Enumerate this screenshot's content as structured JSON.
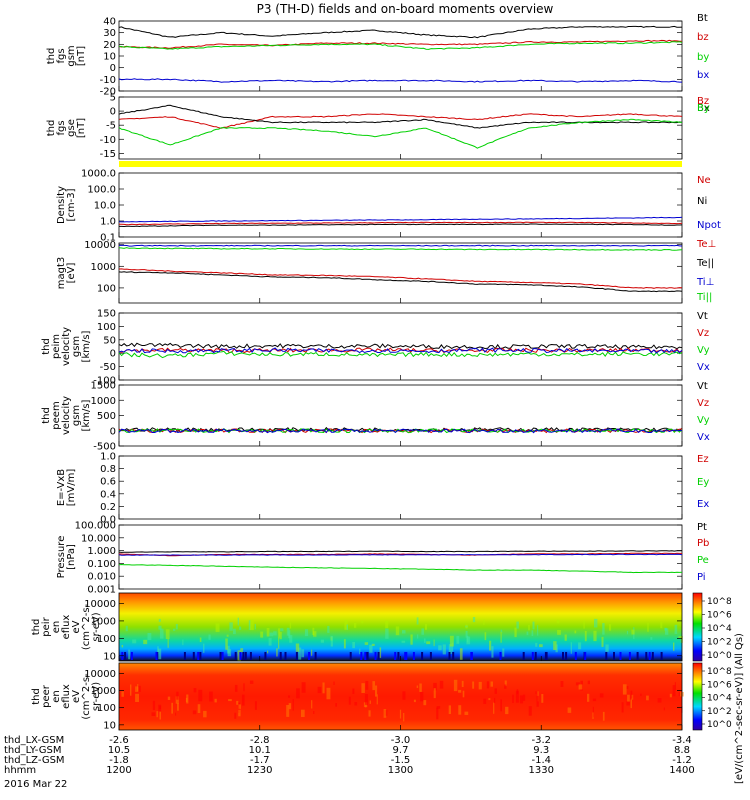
{
  "title": "P3 (TH-D) fields and on-board moments overview",
  "date_label": "2016 Mar 22",
  "x_axis": {
    "row_labels": [
      "thd_LX-GSM",
      "thd_LY-GSM",
      "thd_LZ-GSM",
      "hhmm"
    ],
    "ticks": [
      {
        "values": [
          "-2.6",
          "10.5",
          "-1.8",
          "1200"
        ]
      },
      {
        "values": [
          "-2.8",
          "10.1",
          "-1.7",
          "1230"
        ]
      },
      {
        "values": [
          "-3.0",
          "9.7",
          "-1.5",
          "1300"
        ]
      },
      {
        "values": [
          "-3.2",
          "9.3",
          "-1.4",
          "1330"
        ]
      },
      {
        "values": [
          "-3.4",
          "8.8",
          "-1.2",
          "1400"
        ]
      }
    ]
  },
  "colorbar": {
    "label": "[eV/(cm^2-sec-sr-eV)] (All Qs)",
    "upper": [
      "10^8",
      "10^6",
      "10^4",
      "10^2",
      "10^0"
    ],
    "lower": [
      "10^8",
      "10^6",
      "10^4",
      "10^2",
      "10^0"
    ]
  },
  "chart_data": [
    {
      "type": "line",
      "ylabel": [
        "thd",
        "fgs",
        "gsm",
        "[nT]"
      ],
      "ylim": [
        -20,
        40
      ],
      "ticks": [
        "40",
        "30",
        "20",
        "10",
        "0",
        "-10",
        "-20"
      ],
      "series": [
        {
          "name": "Bt",
          "color": "#000000",
          "y": [
            35,
            26,
            30,
            27,
            30,
            32,
            28,
            26,
            33,
            35,
            35,
            35
          ]
        },
        {
          "name": "bz",
          "color": "#d00000",
          "y": [
            18,
            17,
            20,
            19,
            21,
            21,
            20,
            20,
            22,
            22,
            23,
            23
          ]
        },
        {
          "name": "by",
          "color": "#00d000",
          "y": [
            18,
            16,
            18,
            19,
            20,
            20,
            16,
            17,
            20,
            21,
            21,
            22
          ]
        },
        {
          "name": "bx",
          "color": "#0000d0",
          "y": [
            -10,
            -10,
            -12,
            -11,
            -12,
            -11,
            -11,
            -12,
            -11,
            -12,
            -11,
            -12
          ]
        }
      ]
    },
    {
      "type": "line",
      "ylabel": [
        "thd",
        "fgs",
        "gse",
        "[nT]"
      ],
      "ylim": [
        -17,
        5
      ],
      "ticks": [
        "5",
        "0",
        "-5",
        "-10",
        "-15"
      ],
      "series": [
        {
          "name": "Bz",
          "color": "#d00000",
          "y": [
            -3,
            -2,
            -6,
            -2,
            -2,
            -1,
            -2,
            -3,
            -1,
            -2,
            -1,
            -2
          ]
        },
        {
          "name": "Bx",
          "color": "#000000",
          "y": [
            -1,
            2,
            -2,
            -4,
            -4,
            -4,
            -3,
            -6,
            -4,
            -4,
            -4,
            -4
          ]
        },
        {
          "name": "By",
          "color": "#00d000",
          "y": [
            -6,
            -12,
            -6,
            -6,
            -7,
            -9,
            -6,
            -13,
            -6,
            -4,
            -3,
            -4
          ]
        }
      ]
    },
    {
      "type": "line",
      "ylabel": [
        "Density",
        "[cm-3]"
      ],
      "ylim": [
        0.1,
        1000
      ],
      "log": true,
      "ticks": [
        "1000.0",
        "100.0",
        "10.0",
        "1.0",
        "0.1"
      ],
      "series": [
        {
          "name": "Ne",
          "color": "#d00000",
          "y": [
            0.6,
            0.65,
            0.7,
            0.72,
            0.75,
            0.78,
            0.8,
            0.8,
            0.82,
            0.8,
            0.75,
            0.7
          ]
        },
        {
          "name": "Ni",
          "color": "#000000",
          "y": [
            0.45,
            0.5,
            0.55,
            0.55,
            0.58,
            0.6,
            0.62,
            0.62,
            0.64,
            0.62,
            0.6,
            0.55
          ]
        },
        {
          "name": "Npot",
          "color": "#0000d0",
          "y": [
            0.9,
            0.95,
            1.0,
            1.05,
            1.1,
            1.15,
            1.2,
            1.3,
            1.35,
            1.45,
            1.55,
            1.7
          ]
        }
      ]
    },
    {
      "type": "line",
      "ylabel": [
        "magt3",
        "[eV]"
      ],
      "ylim": [
        20,
        12000
      ],
      "log": true,
      "ticks": [
        "10000",
        "1000",
        "100"
      ],
      "series": [
        {
          "name": "Te⊥",
          "color": "#d00000",
          "y": [
            750,
            600,
            500,
            400,
            380,
            330,
            260,
            200,
            180,
            150,
            100,
            100
          ]
        },
        {
          "name": "Te||",
          "color": "#000000",
          "y": [
            550,
            500,
            400,
            320,
            300,
            240,
            200,
            150,
            140,
            110,
            70,
            70
          ]
        },
        {
          "name": "Ti⊥",
          "color": "#0000d0",
          "y": [
            9000,
            9000,
            9000,
            9000,
            9000,
            9000,
            9000,
            9000,
            9000,
            9000,
            9000,
            9000
          ]
        },
        {
          "name": "Ti||",
          "color": "#00d000",
          "y": [
            7000,
            6800,
            6500,
            6500,
            6300,
            6200,
            6200,
            6000,
            6000,
            5900,
            5800,
            5800
          ]
        }
      ]
    },
    {
      "type": "line",
      "ylabel": [
        "thd",
        "peim",
        "velocity",
        "gsm",
        "[km/s]"
      ],
      "ylim": [
        -100,
        150
      ],
      "ticks": [
        "150",
        "100",
        "50",
        "0",
        "-50",
        "-100"
      ],
      "series": [
        {
          "name": "Vt",
          "color": "#000000",
          "y": [
            30,
            30,
            25,
            28,
            26,
            27,
            25,
            24,
            25,
            26,
            22,
            24
          ]
        },
        {
          "name": "Vz",
          "color": "#d00000",
          "y": [
            10,
            12,
            10,
            10,
            11,
            12,
            10,
            10,
            11,
            10,
            12,
            11
          ]
        },
        {
          "name": "Vy",
          "color": "#00d000",
          "y": [
            -5,
            -10,
            0,
            -5,
            -3,
            -8,
            -4,
            -6,
            -3,
            -5,
            -2,
            -4
          ]
        },
        {
          "name": "Vx",
          "color": "#0000d0",
          "y": [
            10,
            8,
            10,
            12,
            9,
            10,
            8,
            12,
            10,
            9,
            8,
            6
          ]
        }
      ]
    },
    {
      "type": "line",
      "ylabel": [
        "thd",
        "peem",
        "velocity",
        "gsm",
        "[km/s]"
      ],
      "ylim": [
        -500,
        1500
      ],
      "ticks": [
        "1500",
        "1000",
        "500",
        "0",
        "-500"
      ],
      "series": [
        {
          "name": "Vt",
          "color": "#000000",
          "y": [
            40,
            40,
            38,
            40,
            42,
            40,
            38,
            40,
            42,
            40,
            40,
            38
          ]
        },
        {
          "name": "Vz",
          "color": "#d00000",
          "y": [
            0,
            0,
            0,
            0,
            0,
            0,
            0,
            0,
            0,
            0,
            0,
            0
          ]
        },
        {
          "name": "Vy",
          "color": "#00d000",
          "y": [
            0,
            0,
            0,
            0,
            0,
            0,
            0,
            0,
            0,
            0,
            0,
            0
          ]
        },
        {
          "name": "Vx",
          "color": "#0000d0",
          "y": [
            0,
            0,
            0,
            0,
            0,
            0,
            0,
            0,
            0,
            0,
            0,
            0
          ]
        }
      ]
    },
    {
      "type": "line",
      "ylabel": [
        "E=-VxB",
        "[mV/m]"
      ],
      "ylim": [
        0,
        1
      ],
      "ticks": [
        "1.0",
        "0.8",
        "0.6",
        "0.4",
        "0.2",
        "0.0"
      ],
      "series": [
        {
          "name": "Ez",
          "color": "#d00000",
          "y": []
        },
        {
          "name": "Ey",
          "color": "#00d000",
          "y": []
        },
        {
          "name": "Ex",
          "color": "#0000d0",
          "y": []
        }
      ]
    },
    {
      "type": "line",
      "ylabel": [
        "Pressure",
        "[nPa]"
      ],
      "ylim": [
        0.001,
        100
      ],
      "log": true,
      "ticks": [
        "100.000",
        "10.000",
        "1.000",
        "0.100",
        "0.010",
        "0.001"
      ],
      "series": [
        {
          "name": "Pt",
          "color": "#000000",
          "y": [
            0.75,
            0.8,
            0.8,
            0.85,
            0.85,
            0.9,
            0.85,
            0.85,
            0.9,
            0.9,
            0.95,
            0.95
          ]
        },
        {
          "name": "Pb",
          "color": "#d00000",
          "y": [
            0.55,
            0.4,
            0.5,
            0.5,
            0.5,
            0.55,
            0.5,
            0.45,
            0.55,
            0.55,
            0.6,
            0.6
          ]
        },
        {
          "name": "Pe",
          "color": "#00d000",
          "y": [
            0.08,
            0.07,
            0.06,
            0.05,
            0.045,
            0.04,
            0.035,
            0.03,
            0.03,
            0.025,
            0.02,
            0.02
          ]
        },
        {
          "name": "Pi",
          "color": "#0000d0",
          "y": [
            0.45,
            0.45,
            0.45,
            0.46,
            0.46,
            0.47,
            0.47,
            0.48,
            0.48,
            0.49,
            0.5,
            0.5
          ]
        }
      ]
    },
    {
      "type": "heatmap",
      "ylabel": [
        "thd",
        "peir",
        "en",
        "eflux",
        "eV",
        "(cm^2-s-",
        "sr-eV)"
      ],
      "ylim": [
        5,
        40000
      ],
      "log": true,
      "ticks": [
        "10000",
        "1000",
        "100",
        "10"
      ]
    },
    {
      "type": "heatmap",
      "ylabel": [
        "thd",
        "peer",
        "en",
        "eflux",
        "eV",
        "(cm^2-s-",
        "sr-eV)"
      ],
      "ylim": [
        5,
        40000
      ],
      "log": true,
      "ticks": [
        "10000",
        "1000",
        "100",
        "10"
      ]
    }
  ]
}
